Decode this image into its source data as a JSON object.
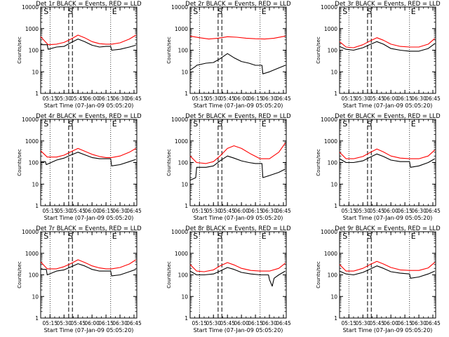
{
  "shared": {
    "xlabel": "Start Time (07-Jan-09 05:05:20)",
    "ylabel": "Counts/sec",
    "x_tick_labels": [
      "05:15",
      "05:30",
      "05:45",
      "06:00",
      "06:15",
      "06:30",
      "06:45"
    ],
    "y_tick_labels": [
      "1",
      "10",
      "100",
      "1000",
      "10000"
    ],
    "markers": {
      "start": "S",
      "end": "E"
    },
    "colors": {
      "events": "#000000",
      "lld": "#ff0000",
      "axes": "#000000",
      "background": "#ffffff"
    }
  },
  "chart_data": [
    {
      "type": "line",
      "title": "Det 1r BLACK = Events, RED = LLD",
      "xlabel": "Start Time (07-Jan-09 05:05:20)",
      "ylabel": "Counts/sec",
      "yscale": "log",
      "ylim": [
        1,
        10000
      ],
      "xlim": [
        "05:05",
        "06:48"
      ],
      "grid": false,
      "legend": "none",
      "series": [
        {
          "name": "BLACK = Events",
          "color": "#000000",
          "x": [
            "05:05",
            "05:12",
            "05:13",
            "05:22",
            "05:30",
            "05:37",
            "05:45",
            "05:52",
            "06:00",
            "06:08",
            "06:15",
            "06:20",
            "06:21",
            "06:30",
            "06:40",
            "06:47"
          ],
          "values": [
            180,
            180,
            110,
            140,
            150,
            220,
            330,
            250,
            170,
            140,
            150,
            150,
            100,
            110,
            140,
            170
          ]
        },
        {
          "name": "RED = LLD",
          "color": "#ff0000",
          "x": [
            "05:05",
            "05:13",
            "05:22",
            "05:30",
            "05:37",
            "05:45",
            "05:52",
            "06:00",
            "06:08",
            "06:15",
            "06:21",
            "06:30",
            "06:40",
            "06:47"
          ],
          "values": [
            420,
            180,
            190,
            230,
            320,
            500,
            380,
            250,
            200,
            190,
            190,
            220,
            330,
            500
          ]
        }
      ]
    },
    {
      "type": "line",
      "title": "Det 2r BLACK = Events, RED = LLD",
      "xlabel": "Start Time (07-Jan-09 05:05:20)",
      "ylabel": "Counts/sec",
      "yscale": "log",
      "ylim": [
        1,
        10000
      ],
      "xlim": [
        "05:05",
        "06:48"
      ],
      "grid": false,
      "legend": "none",
      "series": [
        {
          "name": "BLACK = Events",
          "color": "#000000",
          "x": [
            "05:05",
            "05:11",
            "05:12",
            "05:22",
            "05:30",
            "05:37",
            "05:45",
            "05:52",
            "06:00",
            "06:08",
            "06:15",
            "06:22",
            "06:23",
            "06:30",
            "06:40",
            "06:47"
          ],
          "values": [
            12,
            18,
            20,
            25,
            27,
            40,
            70,
            45,
            30,
            25,
            20,
            20,
            8,
            10,
            15,
            20
          ]
        },
        {
          "name": "RED = LLD",
          "color": "#ff0000",
          "x": [
            "05:05",
            "05:15",
            "05:25",
            "05:35",
            "05:45",
            "05:55",
            "06:05",
            "06:15",
            "06:25",
            "06:35",
            "06:47"
          ],
          "values": [
            450,
            380,
            330,
            360,
            420,
            400,
            360,
            340,
            330,
            360,
            450
          ]
        }
      ]
    },
    {
      "type": "line",
      "title": "Det 3r BLACK = Events, RED = LLD",
      "xlabel": "Start Time (07-Jan-09 05:05:20)",
      "ylabel": "Counts/sec",
      "yscale": "log",
      "ylim": [
        1,
        10000
      ],
      "xlim": [
        "05:05",
        "06:48"
      ],
      "grid": false,
      "legend": "none",
      "series": [
        {
          "name": "BLACK = Events",
          "color": "#000000",
          "x": [
            "05:05",
            "05:12",
            "05:20",
            "05:30",
            "05:37",
            "05:45",
            "05:52",
            "06:00",
            "06:10",
            "06:20",
            "06:30",
            "06:40",
            "06:47"
          ],
          "values": [
            150,
            110,
            100,
            130,
            180,
            250,
            190,
            120,
            100,
            90,
            90,
            120,
            200
          ]
        },
        {
          "name": "RED = LLD",
          "color": "#ff0000",
          "x": [
            "05:05",
            "05:12",
            "05:20",
            "05:30",
            "05:37",
            "05:45",
            "05:52",
            "06:00",
            "06:10",
            "06:20",
            "06:30",
            "06:40",
            "06:47"
          ],
          "values": [
            250,
            140,
            130,
            180,
            260,
            380,
            290,
            190,
            150,
            140,
            140,
            190,
            350
          ]
        }
      ]
    },
    {
      "type": "line",
      "title": "Det 4r BLACK = Events, RED = LLD",
      "xlabel": "Start Time (07-Jan-09 05:05:20)",
      "ylabel": "Counts/sec",
      "yscale": "log",
      "ylim": [
        1,
        10000
      ],
      "xlim": [
        "05:05",
        "06:48"
      ],
      "grid": false,
      "legend": "none",
      "series": [
        {
          "name": "BLACK = Events",
          "color": "#000000",
          "x": [
            "05:05",
            "05:10",
            "05:11",
            "05:22",
            "05:30",
            "05:37",
            "05:45",
            "05:52",
            "06:00",
            "06:08",
            "06:15",
            "06:20",
            "06:21",
            "06:30",
            "06:40",
            "06:47"
          ],
          "values": [
            110,
            110,
            80,
            130,
            160,
            220,
            300,
            230,
            170,
            150,
            150,
            150,
            70,
            80,
            110,
            140
          ]
        },
        {
          "name": "RED = LLD",
          "color": "#ff0000",
          "x": [
            "05:05",
            "05:12",
            "05:22",
            "05:30",
            "05:37",
            "05:45",
            "05:52",
            "06:00",
            "06:08",
            "06:15",
            "06:21",
            "06:30",
            "06:40",
            "06:47"
          ],
          "values": [
            350,
            180,
            180,
            220,
            310,
            450,
            340,
            240,
            190,
            170,
            170,
            200,
            300,
            450
          ]
        }
      ]
    },
    {
      "type": "line",
      "title": "Det 5r BLACK = Events, RED = LLD",
      "xlabel": "Start Time (07-Jan-09 05:05:20)",
      "ylabel": "Counts/sec",
      "yscale": "log",
      "ylim": [
        1,
        10000
      ],
      "xlim": [
        "05:05",
        "06:48"
      ],
      "grid": false,
      "legend": "none",
      "series": [
        {
          "name": "BLACK = Events",
          "color": "#000000",
          "x": [
            "05:05",
            "05:11",
            "05:12",
            "05:22",
            "05:30",
            "05:37",
            "05:45",
            "05:52",
            "06:00",
            "06:08",
            "06:15",
            "06:22",
            "06:23",
            "06:30",
            "06:40",
            "06:47"
          ],
          "values": [
            15,
            20,
            60,
            60,
            70,
            120,
            200,
            160,
            120,
            100,
            90,
            90,
            20,
            25,
            35,
            50
          ]
        },
        {
          "name": "RED = LLD",
          "color": "#ff0000",
          "x": [
            "05:05",
            "05:12",
            "05:22",
            "05:30",
            "05:37",
            "05:45",
            "05:52",
            "06:00",
            "06:10",
            "06:20",
            "06:30",
            "06:40",
            "06:47"
          ],
          "values": [
            200,
            100,
            90,
            110,
            200,
            450,
            600,
            450,
            250,
            150,
            150,
            300,
            800
          ]
        }
      ]
    },
    {
      "type": "line",
      "title": "Det 6r BLACK = Events, RED = LLD",
      "xlabel": "Start Time (07-Jan-09 05:05:20)",
      "ylabel": "Counts/sec",
      "yscale": "log",
      "ylim": [
        1,
        10000
      ],
      "xlim": [
        "05:05",
        "06:48"
      ],
      "grid": false,
      "legend": "none",
      "series": [
        {
          "name": "BLACK = Events",
          "color": "#000000",
          "x": [
            "05:05",
            "05:12",
            "05:20",
            "05:30",
            "05:37",
            "05:45",
            "05:52",
            "06:00",
            "06:10",
            "06:20",
            "06:21",
            "06:30",
            "06:40",
            "06:47"
          ],
          "values": [
            150,
            100,
            100,
            120,
            170,
            250,
            190,
            130,
            110,
            110,
            60,
            70,
            100,
            150
          ]
        },
        {
          "name": "RED = LLD",
          "color": "#ff0000",
          "x": [
            "05:05",
            "05:12",
            "05:20",
            "05:30",
            "05:37",
            "05:45",
            "05:52",
            "06:00",
            "06:10",
            "06:20",
            "06:30",
            "06:40",
            "06:47"
          ],
          "values": [
            300,
            150,
            150,
            190,
            280,
            420,
            310,
            200,
            160,
            150,
            150,
            200,
            380
          ]
        }
      ]
    },
    {
      "type": "line",
      "title": "Det 7r BLACK = Events, RED = LLD",
      "xlabel": "Start Time (07-Jan-09 05:05:20)",
      "ylabel": "Counts/sec",
      "yscale": "log",
      "ylim": [
        1,
        10000
      ],
      "xlim": [
        "05:05",
        "06:48"
      ],
      "grid": false,
      "legend": "none",
      "series": [
        {
          "name": "BLACK = Events",
          "color": "#000000",
          "x": [
            "05:05",
            "05:11",
            "05:12",
            "05:22",
            "05:30",
            "05:37",
            "05:45",
            "05:52",
            "06:00",
            "06:08",
            "06:15",
            "06:20",
            "06:21",
            "06:30",
            "06:40",
            "06:47"
          ],
          "values": [
            180,
            180,
            100,
            150,
            170,
            230,
            330,
            260,
            180,
            150,
            150,
            150,
            90,
            100,
            140,
            180
          ]
        },
        {
          "name": "RED = LLD",
          "color": "#ff0000",
          "x": [
            "05:05",
            "05:12",
            "05:22",
            "05:30",
            "05:37",
            "05:45",
            "05:52",
            "06:00",
            "06:08",
            "06:15",
            "06:21",
            "06:30",
            "06:40",
            "06:47"
          ],
          "values": [
            400,
            190,
            190,
            240,
            330,
            500,
            380,
            260,
            210,
            190,
            190,
            220,
            320,
            500
          ]
        }
      ]
    },
    {
      "type": "line",
      "title": "Det 8r BLACK = Events, RED = LLD",
      "xlabel": "Start Time (07-Jan-09 05:05:20)",
      "ylabel": "Counts/sec",
      "yscale": "log",
      "ylim": [
        1,
        10000
      ],
      "xlim": [
        "05:05",
        "06:48"
      ],
      "grid": false,
      "legend": "none",
      "series": [
        {
          "name": "BLACK = Events",
          "color": "#000000",
          "x": [
            "05:05",
            "05:12",
            "05:20",
            "05:30",
            "05:37",
            "05:45",
            "05:52",
            "06:00",
            "06:10",
            "06:20",
            "06:29",
            "06:30",
            "06:33",
            "06:35",
            "06:40",
            "06:47"
          ],
          "values": [
            150,
            100,
            100,
            110,
            150,
            220,
            180,
            130,
            110,
            100,
            100,
            60,
            30,
            70,
            100,
            150
          ]
        },
        {
          "name": "RED = LLD",
          "color": "#ff0000",
          "x": [
            "05:05",
            "05:12",
            "05:20",
            "05:30",
            "05:37",
            "05:45",
            "05:52",
            "06:00",
            "06:10",
            "06:20",
            "06:30",
            "06:40",
            "06:47"
          ],
          "values": [
            300,
            150,
            140,
            170,
            260,
            370,
            290,
            200,
            160,
            150,
            150,
            200,
            350
          ]
        }
      ]
    },
    {
      "type": "line",
      "title": "Det 9r BLACK = Events, RED = LLD",
      "xlabel": "Start Time (07-Jan-09 05:05:20)",
      "ylabel": "Counts/sec",
      "yscale": "log",
      "ylim": [
        1,
        10000
      ],
      "xlim": [
        "05:05",
        "06:48"
      ],
      "grid": false,
      "legend": "none",
      "series": [
        {
          "name": "BLACK = Events",
          "color": "#000000",
          "x": [
            "05:05",
            "05:12",
            "05:20",
            "05:30",
            "05:37",
            "05:45",
            "05:52",
            "06:00",
            "06:10",
            "06:20",
            "06:21",
            "06:30",
            "06:40",
            "06:47"
          ],
          "values": [
            150,
            110,
            100,
            130,
            180,
            260,
            200,
            140,
            120,
            110,
            70,
            80,
            110,
            150
          ]
        },
        {
          "name": "RED = LLD",
          "color": "#ff0000",
          "x": [
            "05:05",
            "05:12",
            "05:20",
            "05:30",
            "05:37",
            "05:45",
            "05:52",
            "06:00",
            "06:10",
            "06:20",
            "06:30",
            "06:40",
            "06:47"
          ],
          "values": [
            300,
            150,
            150,
            200,
            290,
            420,
            320,
            220,
            170,
            160,
            160,
            210,
            380
          ]
        }
      ]
    }
  ]
}
